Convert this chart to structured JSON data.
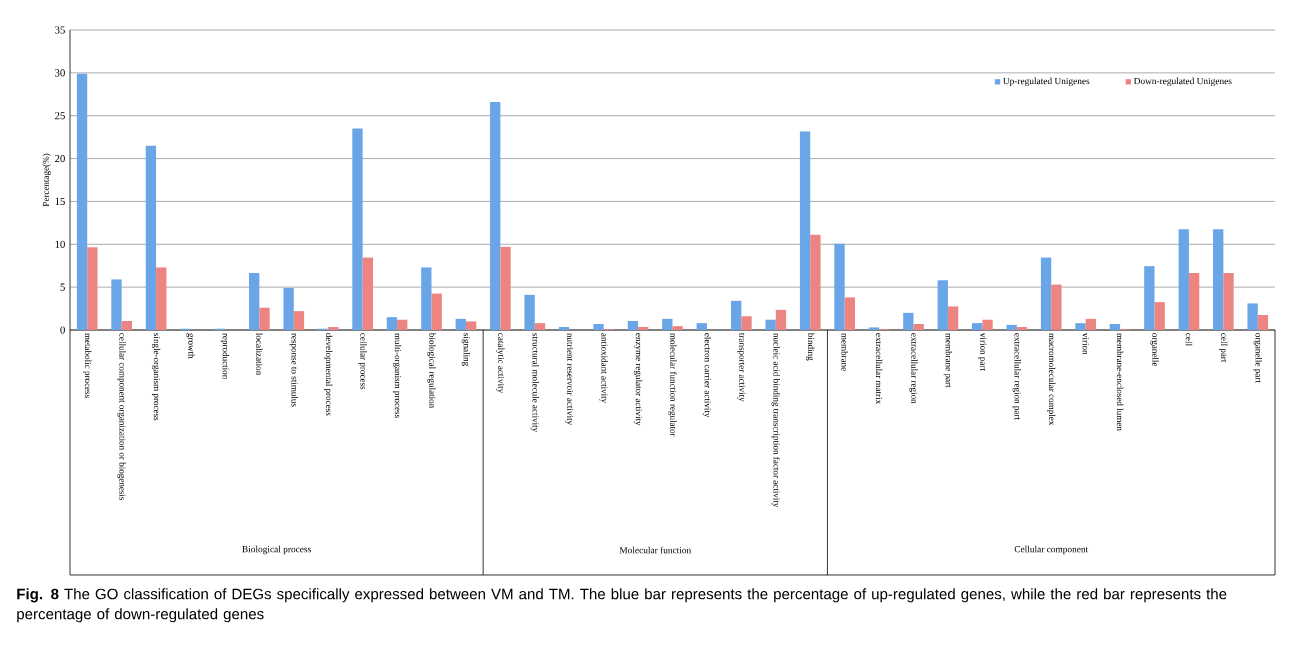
{
  "chart_data": {
    "type": "bar",
    "ylabel": "Percentage(%)",
    "categories": [
      "metabolic process",
      "cellular component organization or biogenesis",
      "single-organism process",
      "growth",
      "reproduction",
      "localization",
      "response to stimulus",
      "developmental process",
      "cellular process",
      "multi-organism process",
      "biological regulation",
      "signaling",
      "catalytic activity",
      "structural molecule activity",
      "nutrient reservoir activity",
      "antioxidant activity",
      "enzyme regulator activity",
      "molecular function regulator",
      "electron carrier activity",
      "transporter activity",
      "nucleic acid binding transcription factor activity",
      "binding",
      "membrane",
      "extracellular matrix",
      "extracellular region",
      "membrane part",
      "virion part",
      "extracellular region part",
      "macromolecular complex",
      "virion",
      "membrane-enclosed lumen",
      "organelle",
      "cell",
      "cell part",
      "organelle part"
    ],
    "series": [
      {
        "name": "Up-regulated Unigenes",
        "color": "#6aa5e8",
        "values": [
          29.9,
          5.9,
          21.5,
          0.15,
          0.15,
          6.65,
          4.9,
          0.15,
          23.5,
          1.5,
          7.3,
          1.3,
          26.6,
          4.1,
          0.35,
          0.7,
          1.05,
          1.3,
          0.8,
          3.4,
          1.2,
          23.15,
          10.05,
          0.3,
          2.0,
          5.8,
          0.8,
          0.6,
          8.45,
          0.8,
          0.7,
          7.45,
          11.75,
          11.75,
          3.1
        ]
      },
      {
        "name": "Down-regulated Unigenes",
        "color": "#ec8582",
        "values": [
          9.65,
          1.05,
          7.3,
          0,
          0,
          2.6,
          2.2,
          0.35,
          8.45,
          1.2,
          4.25,
          1.0,
          9.7,
          0.8,
          0,
          0.1,
          0.35,
          0.45,
          0,
          1.6,
          2.35,
          11.1,
          3.8,
          0.1,
          0.7,
          2.75,
          1.2,
          0.35,
          5.3,
          1.3,
          0.1,
          3.25,
          6.65,
          6.65,
          1.75
        ]
      }
    ],
    "ylim": [
      0,
      35
    ],
    "yticks": [
      0,
      5,
      10,
      15,
      20,
      25,
      30,
      35
    ],
    "grid": "y",
    "legend": "top right",
    "annotations": [
      "Biological process",
      "Molecular function",
      "Cellular component",
      "**Fig. 8** The GO classification of DEGs specifically expressed between VM and TM. The blue bar represents the percentage of up-regulated genes, while the red bar represents the percentage of down-regulated genes"
    ]
  }
}
